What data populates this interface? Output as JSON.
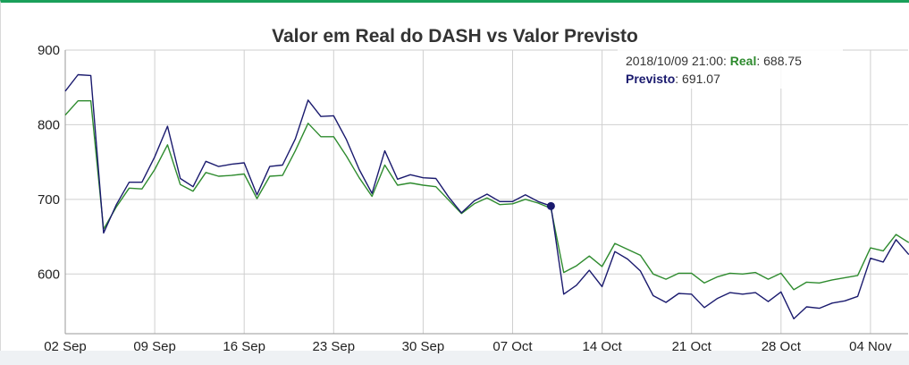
{
  "chart_data": {
    "type": "line",
    "title": "Valor em Real do DASH vs Valor Previsto",
    "x_ticks": [
      "02 Sep",
      "09 Sep",
      "16 Sep",
      "23 Sep",
      "30 Sep",
      "07 Oct",
      "14 Oct",
      "21 Oct",
      "28 Oct",
      "04 Nov"
    ],
    "y_ticks": [
      600,
      700,
      800,
      900
    ],
    "ylim": [
      520,
      900
    ],
    "grid": true,
    "x_start": "2018-09-02",
    "x_step_days": 1,
    "series": [
      {
        "name": "Real",
        "color": "#2e8b2e",
        "values": [
          813,
          832,
          832,
          660,
          690,
          715,
          714,
          740,
          773,
          720,
          711,
          736,
          731,
          732,
          734,
          701,
          731,
          732,
          765,
          802,
          784,
          784,
          758,
          729,
          704,
          746,
          719,
          722,
          719,
          717,
          699,
          681,
          694,
          702,
          693,
          694,
          700,
          695,
          688,
          602,
          611,
          624,
          610,
          641,
          633,
          625,
          600,
          593,
          601,
          601,
          588,
          596,
          601,
          600,
          602,
          593,
          601,
          579,
          589,
          588,
          592,
          595,
          598,
          635,
          631,
          653,
          642
        ]
      },
      {
        "name": "Previsto",
        "color": "#1a1a6e",
        "values": [
          845,
          867,
          866,
          655,
          693,
          723,
          723,
          757,
          798,
          728,
          717,
          751,
          744,
          747,
          749,
          706,
          744,
          746,
          781,
          833,
          811,
          812,
          780,
          740,
          708,
          765,
          727,
          733,
          729,
          728,
          703,
          682,
          698,
          707,
          697,
          697,
          706,
          697,
          691,
          573,
          585,
          605,
          583,
          630,
          620,
          604,
          571,
          562,
          574,
          573,
          555,
          567,
          575,
          573,
          575,
          563,
          576,
          540,
          556,
          554,
          561,
          564,
          570,
          621,
          616,
          646,
          626
        ]
      }
    ],
    "tooltip": {
      "date": "2018/10/09 21:00",
      "series1_label": "Real",
      "series1_value": "688.75",
      "series2_label": "Previsto",
      "series2_value": "691.07",
      "point_index": 38
    }
  }
}
